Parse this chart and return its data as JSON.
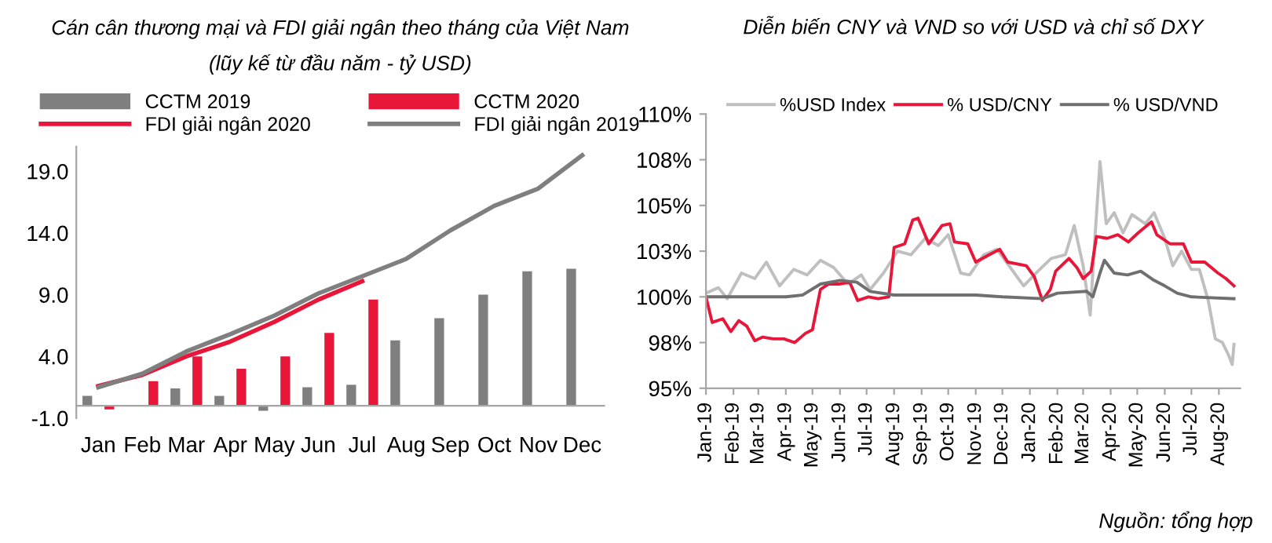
{
  "chart_data": [
    {
      "type": "bar",
      "title": "Cán cân thương mại và FDI giải ngân theo tháng của Việt Nam",
      "subtitle": "(lũy kế từ đầu năm - tỷ USD)",
      "categories": [
        "Jan",
        "Feb",
        "Mar",
        "Apr",
        "May",
        "Jun",
        "Jul",
        "Aug",
        "Sep",
        "Oct",
        "Nov",
        "Dec"
      ],
      "series": [
        {
          "name": "CCTM 2019",
          "type": "bar",
          "color": "#7f7f7f",
          "values": [
            0.8,
            0,
            1.4,
            0.8,
            -0.4,
            1.5,
            1.7,
            5.3,
            7.1,
            9.0,
            10.9,
            11.1
          ]
        },
        {
          "name": "CCTM 2020",
          "type": "bar",
          "color": "#e8173a",
          "values": [
            -0.3,
            2.0,
            4.0,
            3.0,
            4.0,
            5.9,
            8.6,
            null,
            null,
            null,
            null,
            null
          ]
        },
        {
          "name": "FDI giải ngân 2020",
          "type": "line",
          "color": "#e8173a",
          "values": [
            1.6,
            2.5,
            4.0,
            5.2,
            6.8,
            8.6,
            10.1,
            null,
            null,
            null,
            null,
            null
          ]
        },
        {
          "name": "FDI giải ngân 2019",
          "type": "line",
          "color": "#7f7f7f",
          "values": [
            1.5,
            2.6,
            4.4,
            5.8,
            7.3,
            9.1,
            10.5,
            11.9,
            14.2,
            16.2,
            17.6,
            20.3
          ]
        }
      ],
      "ylim": [
        -1,
        21
      ],
      "yticks": [
        {
          "value": -1,
          "label": "-1.0"
        },
        {
          "value": 4,
          "label": "4.0"
        },
        {
          "value": 9,
          "label": "9.0"
        },
        {
          "value": 14,
          "label": "14.0"
        },
        {
          "value": 19,
          "label": "19.0"
        }
      ],
      "grid": false,
      "legend": "top"
    },
    {
      "type": "line",
      "title": "Diễn biến CNY và VND so với USD và chỉ số DXY",
      "series": [
        {
          "name": "%USD Index",
          "color": "#bfbfbf",
          "x": [
            "2019-01-01",
            "2019-01-15",
            "2019-01-25",
            "2019-02-10",
            "2019-02-25",
            "2019-03-10",
            "2019-03-25",
            "2019-04-10",
            "2019-04-25",
            "2019-05-10",
            "2019-05-25",
            "2019-06-10",
            "2019-06-25",
            "2019-07-05",
            "2019-07-20",
            "2019-08-05",
            "2019-08-20",
            "2019-09-05",
            "2019-09-20",
            "2019-10-01",
            "2019-10-15",
            "2019-10-25",
            "2019-11-10",
            "2019-11-25",
            "2019-12-10",
            "2019-12-25",
            "2020-01-10",
            "2020-01-25",
            "2020-02-10",
            "2020-02-20",
            "2020-03-01",
            "2020-03-09",
            "2020-03-14",
            "2020-03-20",
            "2020-03-27",
            "2020-04-05",
            "2020-04-15",
            "2020-04-25",
            "2020-05-10",
            "2020-05-20",
            "2020-06-01",
            "2020-06-10",
            "2020-06-20",
            "2020-07-01",
            "2020-07-10",
            "2020-07-20",
            "2020-07-28",
            "2020-08-05",
            "2020-08-12",
            "2020-08-16",
            "2020-08-18"
          ],
          "values": [
            100.2,
            100.5,
            99.9,
            101.3,
            101.0,
            101.9,
            100.6,
            101.5,
            101.2,
            102.0,
            101.6,
            100.7,
            101.2,
            100.4,
            101.3,
            102.5,
            102.3,
            103.2,
            102.8,
            103.4,
            101.3,
            101.2,
            102.3,
            102.6,
            101.6,
            100.6,
            101.4,
            102.1,
            102.3,
            103.9,
            101.7,
            99.0,
            103.0,
            107.4,
            104.0,
            104.6,
            103.5,
            104.5,
            104.0,
            104.6,
            103.2,
            101.7,
            102.5,
            101.5,
            101.5,
            99.8,
            97.7,
            97.5,
            96.8,
            96.3,
            97.4
          ]
        },
        {
          "name": "% USD/CNY",
          "color": "#e8173a",
          "x": [
            "2019-01-01",
            "2019-01-08",
            "2019-01-20",
            "2019-01-29",
            "2019-02-07",
            "2019-02-16",
            "2019-02-25",
            "2019-03-06",
            "2019-03-18",
            "2019-03-30",
            "2019-04-11",
            "2019-04-23",
            "2019-05-01",
            "2019-05-10",
            "2019-05-19",
            "2019-05-31",
            "2019-06-12",
            "2019-06-21",
            "2019-07-03",
            "2019-07-14",
            "2019-07-26",
            "2019-08-01",
            "2019-08-13",
            "2019-08-22",
            "2019-08-28",
            "2019-09-09",
            "2019-09-24",
            "2019-10-03",
            "2019-10-08",
            "2019-10-23",
            "2019-11-01",
            "2019-11-16",
            "2019-11-28",
            "2019-12-07",
            "2019-12-28",
            "2020-01-06",
            "2020-01-15",
            "2020-01-24",
            "2020-01-30",
            "2020-02-14",
            "2020-02-23",
            "2020-03-01",
            "2020-03-10",
            "2020-03-16",
            "2020-03-28",
            "2020-04-09",
            "2020-04-21",
            "2020-05-02",
            "2020-05-17",
            "2020-05-23",
            "2020-06-07",
            "2020-06-22",
            "2020-07-01",
            "2020-07-16",
            "2020-07-31",
            "2020-08-09",
            "2020-08-18"
          ],
          "values": [
            100.0,
            98.6,
            98.8,
            98.1,
            98.7,
            98.4,
            97.6,
            97.8,
            97.7,
            97.7,
            97.5,
            98.0,
            98.2,
            100.4,
            100.7,
            100.7,
            100.8,
            99.8,
            100.0,
            99.9,
            100.0,
            102.7,
            102.9,
            104.2,
            104.3,
            102.9,
            103.9,
            104.0,
            103.0,
            102.9,
            101.9,
            102.3,
            102.6,
            101.9,
            101.7,
            101.1,
            99.8,
            100.4,
            101.4,
            102.1,
            101.6,
            101.0,
            101.4,
            103.3,
            103.2,
            103.4,
            103.0,
            103.5,
            104.1,
            103.4,
            102.9,
            102.9,
            101.9,
            101.9,
            101.3,
            101.0,
            100.6
          ]
        },
        {
          "name": "% USD/VND",
          "color": "#6f6f6f",
          "x": [
            "2019-01-01",
            "2019-04-01",
            "2019-04-20",
            "2019-05-10",
            "2019-06-01",
            "2019-06-20",
            "2019-07-05",
            "2019-08-01",
            "2019-11-01",
            "2019-12-01",
            "2020-01-15",
            "2020-02-01",
            "2020-03-05",
            "2020-03-12",
            "2020-03-20",
            "2020-03-25",
            "2020-04-05",
            "2020-04-20",
            "2020-05-05",
            "2020-05-20",
            "2020-06-01",
            "2020-06-15",
            "2020-07-01",
            "2020-08-18"
          ],
          "values": [
            100.0,
            100.0,
            100.1,
            100.7,
            100.9,
            100.8,
            100.3,
            100.1,
            100.1,
            100.0,
            99.9,
            100.2,
            100.3,
            100.0,
            101.3,
            102.0,
            101.3,
            101.2,
            101.4,
            100.9,
            100.6,
            100.2,
            100.0,
            99.9
          ]
        }
      ],
      "xlim": [
        "2019-01-01",
        "2020-08-25"
      ],
      "xticks": [
        {
          "value": "2019-01-01",
          "label": "Jan-19"
        },
        {
          "value": "2019-02-01",
          "label": "Feb-19"
        },
        {
          "value": "2019-03-01",
          "label": "Mar-19"
        },
        {
          "value": "2019-04-01",
          "label": "Apr-19"
        },
        {
          "value": "2019-05-01",
          "label": "May-19"
        },
        {
          "value": "2019-06-01",
          "label": "Jun-19"
        },
        {
          "value": "2019-07-01",
          "label": "Jul-19"
        },
        {
          "value": "2019-08-01",
          "label": "Aug-19"
        },
        {
          "value": "2019-09-01",
          "label": "Sep-19"
        },
        {
          "value": "2019-10-01",
          "label": "Oct-19"
        },
        {
          "value": "2019-11-01",
          "label": "Nov-19"
        },
        {
          "value": "2019-12-01",
          "label": "Dec-19"
        },
        {
          "value": "2020-01-01",
          "label": "Jan-20"
        },
        {
          "value": "2020-02-01",
          "label": "Feb-20"
        },
        {
          "value": "2020-03-01",
          "label": "Mar-20"
        },
        {
          "value": "2020-04-01",
          "label": "Apr-20"
        },
        {
          "value": "2020-05-01",
          "label": "May-20"
        },
        {
          "value": "2020-06-01",
          "label": "Jun-20"
        },
        {
          "value": "2020-07-01",
          "label": "Jul-20"
        },
        {
          "value": "2020-08-01",
          "label": "Aug-20"
        }
      ],
      "ylim": [
        95,
        110
      ],
      "yticks": [
        {
          "value": 95,
          "label": "95%"
        },
        {
          "value": 97.5,
          "label": "98%"
        },
        {
          "value": 100,
          "label": "100%"
        },
        {
          "value": 102.5,
          "label": "103%"
        },
        {
          "value": 105,
          "label": "105%"
        },
        {
          "value": 107.5,
          "label": "108%"
        },
        {
          "value": 110,
          "label": "110%"
        }
      ],
      "grid": false,
      "legend": "top",
      "annotations": [
        "Nguồn: tổng hợp"
      ]
    }
  ]
}
